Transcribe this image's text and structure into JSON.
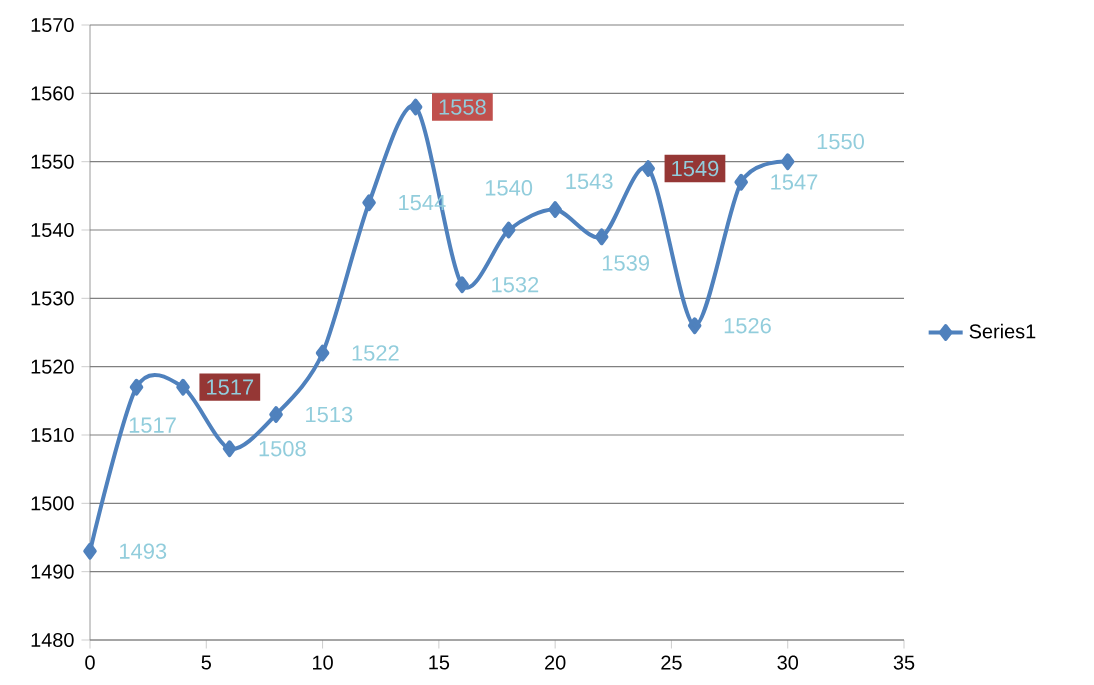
{
  "chart_data": {
    "type": "line",
    "x": [
      0,
      2,
      4,
      6,
      8,
      10,
      12,
      14,
      16,
      18,
      20,
      22,
      24,
      26,
      28,
      30
    ],
    "series": [
      {
        "name": "Series1",
        "color": "#4f81bd",
        "values": [
          1493,
          1517,
          1517,
          1508,
          1513,
          1522,
          1544,
          1558,
          1532,
          1540,
          1543,
          1539,
          1549,
          1526,
          1547,
          1550
        ]
      }
    ],
    "xlim": [
      0,
      35
    ],
    "xticks": [
      0,
      5,
      10,
      15,
      20,
      25,
      30,
      35
    ],
    "ylim": [
      1480,
      1570
    ],
    "yticks": [
      1480,
      1490,
      1500,
      1510,
      1520,
      1530,
      1540,
      1550,
      1560,
      1570
    ],
    "grid": "y",
    "legend": "right",
    "marker": "diamond",
    "data_labels": true
  }
}
